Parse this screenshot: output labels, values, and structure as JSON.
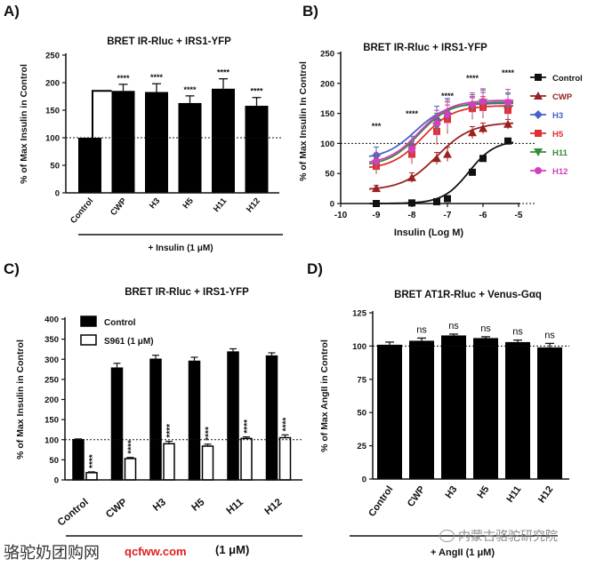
{
  "chart_data": [
    {
      "panel": "A)",
      "type": "bar",
      "title": "BRET IR-Rluc + IRS1-YFP",
      "ylabel": "% of Max Insulin in Control",
      "ylim": [
        0,
        250
      ],
      "yticks": [
        0,
        50,
        100,
        150,
        200,
        250
      ],
      "categories": [
        "Control",
        "CWP",
        "H3",
        "H5",
        "H11",
        "H12"
      ],
      "values": [
        100,
        185,
        183,
        163,
        189,
        158
      ],
      "errors": [
        0,
        12,
        15,
        13,
        18,
        15
      ],
      "significance": [
        "",
        "****",
        "****",
        "****",
        "****",
        "****"
      ],
      "bracket_from": "Control",
      "bracket_to": "CWP",
      "reference_line": 100,
      "treatment": "+ Insulin (1 μM)"
    },
    {
      "panel": "B)",
      "type": "line",
      "title": "BRET IR-Rluc + IRS1-YFP",
      "xlabel": "Insulin (Log M)",
      "ylabel": "% of Max Insulin In Control",
      "xlim": [
        -10,
        -5
      ],
      "ylim": [
        0,
        250
      ],
      "xticks": [
        -10,
        -9,
        -8,
        -7,
        -6,
        -5
      ],
      "yticks": [
        0,
        50,
        100,
        150,
        200,
        250
      ],
      "x": [
        -9,
        -8,
        -7.3,
        -7,
        -6.3,
        -6,
        -5.3
      ],
      "reference_lines": [
        0,
        100
      ],
      "significance": [
        {
          "x": -9,
          "label": "***"
        },
        {
          "x": -8,
          "label": "****"
        },
        {
          "x": -7,
          "label": "****"
        },
        {
          "x": -6.3,
          "label": "****"
        },
        {
          "x": -5.3,
          "label": "****"
        }
      ],
      "series": [
        {
          "name": "Control",
          "color": "#111111",
          "marker": "square",
          "values": [
            0,
            1,
            3,
            8,
            52,
            75,
            104
          ],
          "errors": [
            2,
            2,
            2,
            3,
            4,
            4,
            4
          ],
          "fit_bottom": 0,
          "fit_top": 105,
          "fit_logec50": -6.4,
          "fit_hill": 1.2
        },
        {
          "name": "CWP",
          "color": "#9b2020",
          "marker": "triangle",
          "values": [
            25,
            43,
            75,
            82,
            118,
            125,
            132
          ],
          "errors": [
            5,
            8,
            10,
            12,
            10,
            9,
            8
          ],
          "fit_bottom": 22,
          "fit_top": 135,
          "fit_logec50": -7.3,
          "fit_hill": 0.9
        },
        {
          "name": "H3",
          "color": "#4a63c8",
          "marker": "diamond",
          "values": [
            80,
            97,
            140,
            150,
            160,
            165,
            160
          ],
          "errors": [
            14,
            15,
            22,
            25,
            18,
            20,
            22
          ],
          "fit_bottom": 74,
          "fit_top": 167,
          "fit_logec50": -7.9,
          "fit_hill": 1.0
        },
        {
          "name": "H5",
          "color": "#e03030",
          "marker": "square",
          "values": [
            62,
            82,
            120,
            140,
            158,
            160,
            155
          ],
          "errors": [
            13,
            16,
            22,
            24,
            18,
            18,
            18
          ],
          "fit_bottom": 57,
          "fit_top": 163,
          "fit_logec50": -7.7,
          "fit_hill": 1.0
        },
        {
          "name": "H11",
          "color": "#3a8a3a",
          "marker": "triangle-down",
          "values": [
            67,
            88,
            128,
            145,
            162,
            168,
            163
          ],
          "errors": [
            14,
            15,
            22,
            24,
            19,
            21,
            21
          ],
          "fit_bottom": 62,
          "fit_top": 169,
          "fit_logec50": -7.8,
          "fit_hill": 1.0
        },
        {
          "name": "H12",
          "color": "#d040c0",
          "marker": "circle",
          "values": [
            70,
            90,
            133,
            148,
            165,
            170,
            168
          ],
          "errors": [
            14,
            15,
            22,
            24,
            19,
            21,
            22
          ],
          "fit_bottom": 65,
          "fit_top": 172,
          "fit_logec50": -7.8,
          "fit_hill": 1.0
        }
      ]
    },
    {
      "panel": "C)",
      "type": "bar",
      "title": "BRET IR-Rluc + IRS1-YFP",
      "ylabel": "% of Max Insulin in Control",
      "ylim": [
        0,
        400
      ],
      "yticks": [
        0,
        50,
        100,
        150,
        200,
        250,
        300,
        350,
        400
      ],
      "categories": [
        "Control",
        "CWP",
        "H3",
        "H5",
        "H11",
        "H12"
      ],
      "series": [
        {
          "name": "Control",
          "fill": "#000000",
          "values": [
            100,
            278,
            300,
            295,
            318,
            308
          ],
          "errors": [
            2,
            12,
            10,
            10,
            8,
            8
          ]
        },
        {
          "name": "S961 (1 μM)",
          "fill": "#ffffff",
          "values": [
            18,
            53,
            90,
            84,
            103,
            105
          ],
          "errors": [
            2,
            3,
            6,
            5,
            4,
            7
          ]
        }
      ],
      "significance": [
        "****",
        "****",
        "****",
        "****",
        "****",
        "****"
      ],
      "reference_line": 100
    },
    {
      "panel": "D)",
      "type": "bar",
      "title": "BRET AT1R-Rluc + Venus-Gαq",
      "ylabel": "% of Max AngII in Control",
      "ylim": [
        0,
        125
      ],
      "yticks": [
        0,
        25,
        50,
        75,
        100,
        125
      ],
      "categories": [
        "Control",
        "CWP",
        "H3",
        "H5",
        "H11",
        "H12"
      ],
      "values": [
        101,
        104,
        108,
        106,
        103,
        99
      ],
      "errors": [
        2,
        2,
        1,
        1,
        1.5,
        3
      ],
      "significance": [
        "",
        "ns",
        "ns",
        "ns",
        "ns",
        "ns"
      ],
      "reference_line": 100,
      "treatment": "+ AngII (1 μM)"
    }
  ],
  "footer_treatment": "(1 μM)",
  "watermarks": {
    "site_name": "骆驼奶团购网",
    "site_url": "qcfww.com",
    "institute": "内蒙古骆驼研究院"
  }
}
